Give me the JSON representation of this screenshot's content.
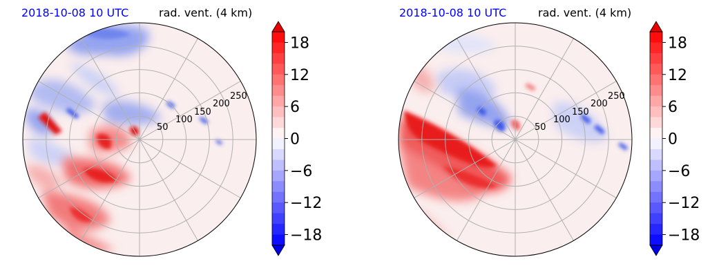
{
  "chart_data": [
    {
      "type": "heatmap",
      "projection": "polar",
      "title_left": "2018-10-08 10 UTC",
      "title_right": "rad. vent. (4 km)",
      "title_left_color": "#0000ff",
      "radial_ticks": [
        "50",
        "100",
        "150",
        "200",
        "250"
      ],
      "radial_values": [
        50,
        100,
        150,
        200,
        250
      ],
      "rlim": [
        0,
        270
      ],
      "angular_grid_deg": 30,
      "grid": true,
      "colorbar": {
        "ticks": [
          "18",
          "12",
          "6",
          "0",
          "−6",
          "−12",
          "−18"
        ],
        "tick_values": [
          18,
          12,
          6,
          0,
          -6,
          -12,
          -18
        ],
        "range": [
          -20,
          20
        ],
        "extend": "both",
        "colormap": "bwr",
        "position": "right"
      },
      "features": [
        {
          "sign": "negative",
          "region": "north / north-west rim",
          "magnitude": "moderate"
        },
        {
          "sign": "positive",
          "region": "south-west quadrant, inner to outer radius",
          "magnitude": "strong"
        },
        {
          "sign": "positive",
          "region": "west rim near 270 deg",
          "magnitude": "strong"
        },
        {
          "sign": "negative",
          "region": "near center, scattered to east",
          "magnitude": "moderate"
        }
      ]
    },
    {
      "type": "heatmap",
      "projection": "polar",
      "title_left": "2018-10-08 10 UTC",
      "title_right": "rad. vent. (4 km)",
      "title_left_color": "#0000ff",
      "radial_ticks": [
        "50",
        "100",
        "150",
        "200",
        "250"
      ],
      "radial_values": [
        50,
        100,
        150,
        200,
        250
      ],
      "rlim": [
        0,
        270
      ],
      "angular_grid_deg": 30,
      "grid": true,
      "colorbar": {
        "ticks": [
          "18",
          "12",
          "6",
          "0",
          "−6",
          "−12",
          "−18"
        ],
        "tick_values": [
          18,
          12,
          6,
          0,
          -6,
          -12,
          -18
        ],
        "range": [
          -20,
          20
        ],
        "extend": "both",
        "colormap": "bwr",
        "position": "right"
      },
      "features": [
        {
          "sign": "positive",
          "region": "west to south-west band",
          "magnitude": "strong"
        },
        {
          "sign": "negative",
          "region": "north-west arc around center",
          "magnitude": "moderate"
        },
        {
          "sign": "negative",
          "region": "scattered cells east of center",
          "magnitude": "moderate"
        }
      ]
    }
  ]
}
